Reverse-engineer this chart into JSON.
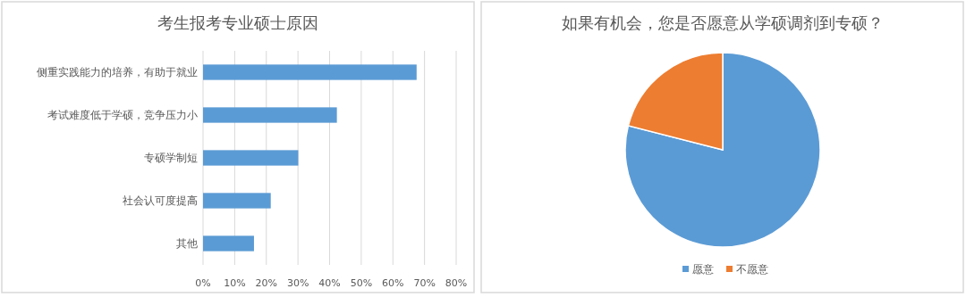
{
  "chart_data": [
    {
      "type": "bar",
      "orientation": "horizontal",
      "title": "考生报考专业硕士原因",
      "categories": [
        "侧重实践能力的培养，有助于就业",
        "考试难度低于学硕，竞争压力小",
        "专硕学制短",
        "社会认可度提高",
        "其他"
      ],
      "values": [
        67.5,
        42.3,
        30.1,
        21.4,
        16.1
      ],
      "color": "#5b9bd5",
      "xlim": [
        0,
        80
      ],
      "xticks": [
        {
          "value": 0,
          "label": "0%"
        },
        {
          "value": 10,
          "label": "10%"
        },
        {
          "value": 20,
          "label": "20%"
        },
        {
          "value": 30,
          "label": "30%"
        },
        {
          "value": 40,
          "label": "40%"
        },
        {
          "value": 50,
          "label": "50%"
        },
        {
          "value": 60,
          "label": "60%"
        },
        {
          "value": 70,
          "label": "70%"
        },
        {
          "value": 80,
          "label": "80%"
        }
      ],
      "grid": "x"
    },
    {
      "type": "pie",
      "title": "如果有机会，您是否愿意从学硕调剂到专硕？",
      "categories": [
        "愿意",
        "不愿意"
      ],
      "values": [
        79,
        21
      ],
      "colors": [
        "#5b9bd5",
        "#ed7d31"
      ],
      "legend": "bottom"
    }
  ]
}
